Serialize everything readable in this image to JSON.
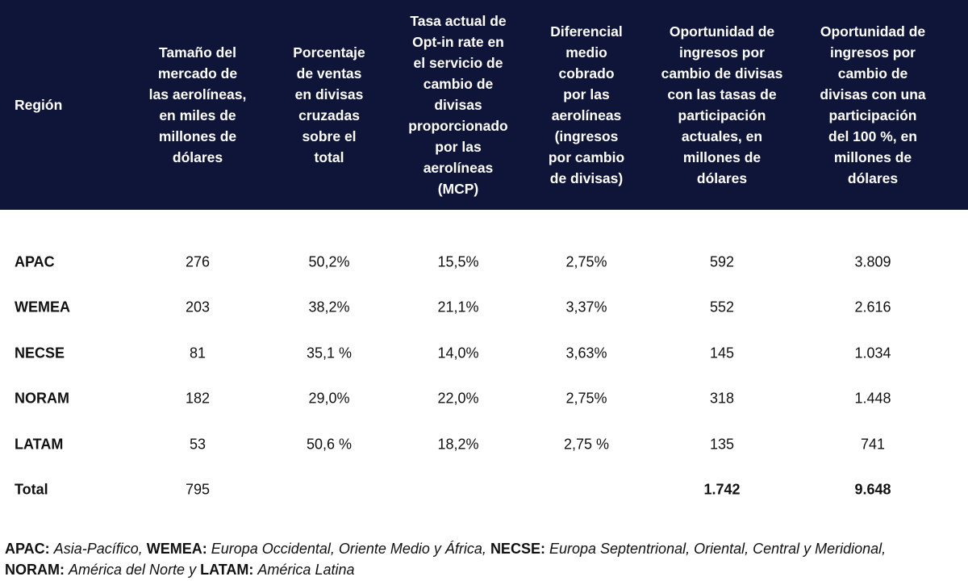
{
  "table": {
    "header": [
      [
        "Región"
      ],
      [
        "Tamaño del",
        "mercado de",
        "las aerolíneas,",
        "en miles de",
        "millones de",
        "dólares"
      ],
      [
        "Porcentaje",
        "de ventas",
        "en divisas",
        "cruzadas",
        "sobre el",
        "total"
      ],
      [
        "Tasa actual de",
        "Opt-in rate en",
        "el servicio de",
        "cambio de",
        "divisas",
        "proporcionado",
        "por las",
        "aerolíneas",
        "(MCP)"
      ],
      [
        "Diferencial",
        "medio",
        "cobrado",
        "por las",
        "aerolíneas",
        "(ingresos",
        "por cambio",
        "de divisas)"
      ],
      [
        "Oportunidad de",
        "ingresos por",
        "cambio de divisas",
        "con las tasas de",
        "participación",
        "actuales, en",
        "millones de",
        "dólares"
      ],
      [
        "Oportunidad de",
        "ingresos por",
        "cambio de",
        "divisas con una",
        "participación",
        "del 100 %, en",
        "millones de",
        "dólares"
      ]
    ],
    "rows": [
      [
        "APAC",
        "276",
        "50,2%",
        "15,5%",
        "2,75%",
        "592",
        "3.809"
      ],
      [
        "WEMEA",
        "203",
        "38,2%",
        "21,1%",
        "3,37%",
        "552",
        "2.616"
      ],
      [
        "NECSE",
        "81",
        "35,1 %",
        "14,0%",
        "3,63%",
        "145",
        "1.034"
      ],
      [
        "NORAM",
        "182",
        "29,0%",
        "22,0%",
        "2,75%",
        "318",
        "1.448"
      ],
      [
        "LATAM",
        "53",
        "50,6 %",
        "18,2%",
        "2,75 %",
        "135",
        "741"
      ],
      [
        "Total",
        "795",
        null,
        null,
        null,
        "1.742",
        "9.648"
      ]
    ]
  },
  "footnote": [
    {
      "term": "APAC:",
      "text": "Asia-Pacífico,"
    },
    {
      "term": "WEMEA:",
      "text": "Europa Occidental, Oriente Medio y África,"
    },
    {
      "term": "NECSE:",
      "text": "Europa Septentrional, Oriental, Central y Meridional,"
    },
    {
      "term": "NORAM:",
      "text": "América del Norte y"
    },
    {
      "term": "LATAM:",
      "text": "América Latina"
    }
  ]
}
